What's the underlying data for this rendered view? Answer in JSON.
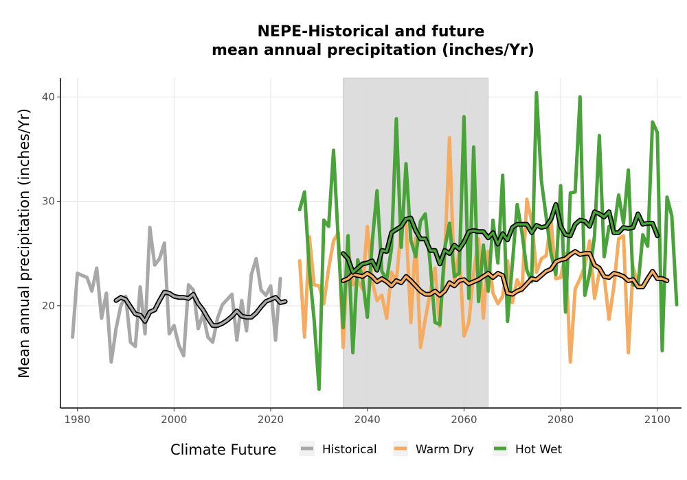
{
  "chart_data": {
    "type": "line",
    "title_line1": "NEPE-Historical and future",
    "title_line2": "mean annual precipitation (inches/Yr)",
    "xlabel": "",
    "ylabel": "Mean annual precipitation (inches/Yr)",
    "xlim": [
      1976.5,
      2105
    ],
    "ylim": [
      10.2,
      41.8
    ],
    "x_ticks": [
      1980,
      2000,
      2020,
      2040,
      2060,
      2080,
      2100
    ],
    "y_ticks": [
      20,
      30,
      40
    ],
    "grid": true,
    "shaded_period": [
      2035,
      2065
    ],
    "legend": {
      "title": "Climate Future",
      "position": "bottom",
      "entries": [
        {
          "label": "Historical",
          "color": "#a8a8a8"
        },
        {
          "label": "Warm Dry",
          "color": "#f6ac60"
        },
        {
          "label": "Hot Wet",
          "color": "#4aa23a"
        }
      ]
    },
    "series": [
      {
        "name": "Historical",
        "color": "#a8a8a8",
        "x_start": 1979,
        "values": [
          17.0,
          23.1,
          22.9,
          22.7,
          21.4,
          23.6,
          18.8,
          21.2,
          14.6,
          17.8,
          20.0,
          20.9,
          16.5,
          16.1,
          21.8,
          17.3,
          27.5,
          23.9,
          24.5,
          26.0,
          17.3,
          18.1,
          16.2,
          15.2,
          22.0,
          21.5,
          17.8,
          19.2,
          17.0,
          16.5,
          18.8,
          20.1,
          20.6,
          21.1,
          16.7,
          20.5,
          17.6,
          23.0,
          24.5,
          21.5,
          21.0,
          21.9,
          16.7,
          22.6
        ]
      },
      {
        "name": "Historical smooth",
        "color": "#a8a8a8",
        "smooth": true,
        "x_start": 1988,
        "values": [
          20.5,
          20.8,
          20.6,
          19.9,
          19.2,
          19.1,
          18.5,
          19.4,
          19.6,
          20.5,
          21.3,
          21.2,
          20.9,
          20.8,
          20.8,
          20.7,
          21.1,
          20.2,
          19.6,
          18.8,
          18.1,
          18.1,
          18.3,
          18.6,
          19.0,
          19.5,
          19.0,
          18.9,
          18.9,
          19.3,
          19.9,
          20.4,
          20.6,
          20.8,
          20.3,
          20.4
        ]
      },
      {
        "name": "Warm Dry",
        "color": "#f6ac60",
        "x_start": 2026,
        "values": [
          24.3,
          17.0,
          26.6,
          22.0,
          21.9,
          20.2,
          23.6,
          26.2,
          27.0,
          16.0,
          25.7,
          22.0,
          22.4,
          21.6,
          27.6,
          22.3,
          20.5,
          21.0,
          18.8,
          23.2,
          22.3,
          27.5,
          27.9,
          18.4,
          26.5,
          16.0,
          18.7,
          21.3,
          23.6,
          18.0,
          24.6,
          36.1,
          22.2,
          25.2,
          17.1,
          18.4,
          23.2,
          26.4,
          18.8,
          25.2,
          21.2,
          20.2,
          20.9,
          24.3,
          20.3,
          22.5,
          21.4,
          30.2,
          28.1,
          23.2,
          24.5,
          24.8,
          28.2,
          22.6,
          22.7,
          25.0,
          14.6,
          21.6,
          22.6,
          23.8,
          26.2,
          20.7,
          23.2,
          22.8,
          18.7,
          21.8,
          26.4,
          26.7,
          15.5,
          23.7,
          22.0
        ]
      },
      {
        "name": "Warm Dry smooth",
        "color": "#f6ac60",
        "smooth": true,
        "x_start": 2035,
        "values": [
          22.4,
          22.6,
          23.0,
          22.9,
          22.8,
          23.1,
          22.8,
          22.3,
          22.6,
          22.3,
          21.9,
          22.4,
          22.2,
          22.8,
          22.4,
          21.9,
          21.4,
          21.1,
          21.1,
          21.4,
          21.0,
          21.4,
          22.2,
          21.9,
          22.4,
          22.5,
          22.1,
          22.3,
          22.5,
          22.8,
          23.1,
          22.7,
          23.1,
          22.9,
          21.2,
          21.1,
          21.4,
          21.6,
          22.1,
          22.6,
          22.5,
          22.9,
          23.3,
          23.5,
          24.2,
          24.4,
          24.5,
          24.9,
          25.2,
          24.9,
          25.0,
          25.0,
          23.9,
          23.6,
          22.8,
          22.7,
          23.1,
          23.0,
          22.8,
          22.4,
          22.5,
          21.8,
          21.8,
          22.6,
          23.3,
          22.6,
          22.6,
          22.4
        ]
      },
      {
        "name": "Hot Wet",
        "color": "#4aa23a",
        "x_start": 2026,
        "values": [
          29.2,
          30.9,
          23.4,
          18.6,
          12.0,
          28.2,
          27.6,
          34.9,
          26.1,
          17.9,
          26.7,
          15.5,
          24.4,
          22.6,
          18.9,
          26.1,
          31.0,
          23.3,
          22.5,
          25.5,
          37.9,
          25.6,
          33.6,
          26.3,
          24.7,
          28.1,
          28.8,
          24.0,
          18.4,
          18.2,
          25.5,
          27.9,
          22.8,
          23.1,
          38.1,
          20.7,
          35.2,
          20.4,
          25.8,
          21.4,
          28.2,
          24.1,
          32.5,
          18.5,
          24.0,
          29.7,
          27.0,
          23.4,
          22.3,
          40.4,
          32.0,
          28.5,
          25.0,
          23.0,
          31.5,
          19.4,
          30.8,
          30.9,
          40.0,
          21.0,
          23.1,
          26.7,
          36.3,
          24.7,
          27.6,
          27.3,
          30.6,
          27.9,
          33.0,
          22.0,
          21.9,
          26.8,
          25.7,
          37.6,
          36.6,
          15.7,
          30.4,
          28.6,
          20.1
        ]
      },
      {
        "name": "Hot Wet smooth",
        "color": "#4aa23a",
        "smooth": true,
        "x_start": 2035,
        "values": [
          25.0,
          24.5,
          23.2,
          23.6,
          24.0,
          24.1,
          24.3,
          23.4,
          25.3,
          25.2,
          27.0,
          27.3,
          27.6,
          28.3,
          28.4,
          27.2,
          26.4,
          26.4,
          25.3,
          25.3,
          24.0,
          25.3,
          25.0,
          25.8,
          25.4,
          26.1,
          27.1,
          27.2,
          27.1,
          27.1,
          26.5,
          27.0,
          25.9,
          26.9,
          26.3,
          27.5,
          27.8,
          27.8,
          27.8,
          27.0,
          27.7,
          27.5,
          27.6,
          28.3,
          29.7,
          27.6,
          26.8,
          26.7,
          27.8,
          28.2,
          28.1,
          27.6,
          29.0,
          28.8,
          28.5,
          29.0,
          27.0,
          27.0,
          27.5,
          27.4,
          27.5,
          28.8,
          27.8,
          27.9,
          27.9,
          26.7
        ]
      }
    ]
  }
}
